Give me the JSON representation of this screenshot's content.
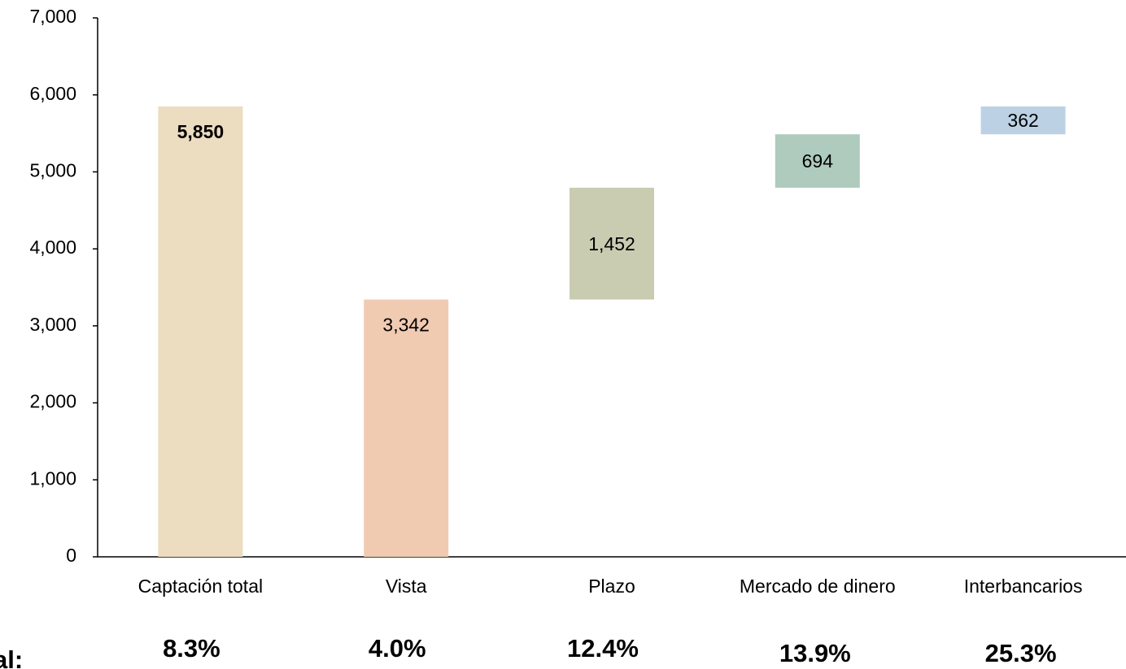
{
  "chart_data": {
    "type": "waterfall",
    "categories": [
      "Captación total",
      "Vista",
      "Plazo",
      "Mercado de dinero",
      "Interbancarios"
    ],
    "values": [
      5850,
      3342,
      1452,
      694,
      362
    ],
    "value_labels": [
      "5,850",
      "3,342",
      "1,452",
      "694",
      "362"
    ],
    "colors": [
      "#ecdcc0",
      "#f0cbb2",
      "#c9ccb1",
      "#aecbbd",
      "#bcd1e4"
    ],
    "ylim": [
      0,
      7000
    ],
    "yticks": [
      0,
      {
        "value": 1000,
        "label": "1,000"
      },
      {
        "value": 2000,
        "label": "2,000"
      },
      {
        "value": 3000,
        "label": "3,000"
      },
      {
        "value": 4000,
        "label": "4,000"
      },
      {
        "value": 5000,
        "label": "5,000"
      },
      {
        "value": 6000,
        "label": "6,000"
      },
      {
        "value": 7000,
        "label": "7,000"
      }
    ],
    "growth_title": "al:",
    "growth_labels": [
      "8.3%",
      "4.0%",
      "12.4%",
      "13.9%",
      "25.3%"
    ]
  }
}
